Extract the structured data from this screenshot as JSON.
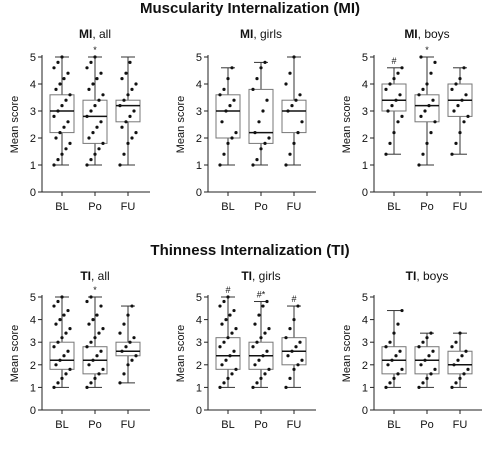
{
  "figure": {
    "title_mi": "Muscularity Internalization (MI)",
    "title_ti": "Thinness Internalization  (TI)"
  },
  "chart_data": [
    {
      "type": "box",
      "title_bold": "MI",
      "title_rest": ", all",
      "ylabel": "Mean score",
      "ylim": [
        0,
        5
      ],
      "yticks": [
        0,
        1,
        2,
        3,
        4,
        5
      ],
      "categories": [
        "BL",
        "Po",
        "FU"
      ],
      "boxes": [
        {
          "min": 1.0,
          "q1": 2.2,
          "median": 3.0,
          "q3": 3.6,
          "max": 5.0,
          "mark": "",
          "points": [
            1.0,
            1.2,
            1.4,
            1.6,
            1.8,
            2.0,
            2.2,
            2.4,
            2.6,
            2.8,
            3.0,
            3.2,
            3.4,
            3.6,
            3.8,
            4.0,
            4.2,
            4.4,
            4.6,
            4.8,
            5.0
          ]
        },
        {
          "min": 1.0,
          "q1": 1.8,
          "median": 2.8,
          "q3": 3.4,
          "max": 5.0,
          "mark": "*",
          "points": [
            1.0,
            1.2,
            1.4,
            1.6,
            1.8,
            2.0,
            2.2,
            2.4,
            2.6,
            2.8,
            3.0,
            3.2,
            3.4,
            3.6,
            3.8,
            4.0,
            4.2,
            4.4,
            4.6,
            4.8,
            5.0
          ]
        },
        {
          "min": 1.0,
          "q1": 2.6,
          "median": 3.2,
          "q3": 3.4,
          "max": 5.0,
          "mark": "",
          "points": [
            1.0,
            1.4,
            1.8,
            2.0,
            2.2,
            2.4,
            2.6,
            2.8,
            3.0,
            3.2,
            3.4,
            3.6,
            3.8,
            4.0,
            4.2,
            4.4,
            4.8
          ]
        }
      ]
    },
    {
      "type": "box",
      "title_bold": "MI",
      "title_rest": ", girls",
      "ylabel": "Mean score",
      "ylim": [
        0,
        5
      ],
      "yticks": [
        0,
        1,
        2,
        3,
        4,
        5
      ],
      "categories": [
        "BL",
        "Po",
        "FU"
      ],
      "boxes": [
        {
          "min": 1.0,
          "q1": 2.0,
          "median": 3.0,
          "q3": 3.6,
          "max": 4.6,
          "mark": "",
          "points": [
            1.0,
            1.4,
            1.8,
            2.0,
            2.2,
            2.6,
            3.0,
            3.2,
            3.4,
            3.6,
            3.8,
            4.2,
            4.6
          ]
        },
        {
          "min": 1.0,
          "q1": 1.8,
          "median": 2.2,
          "q3": 3.8,
          "max": 4.8,
          "mark": "",
          "points": [
            1.0,
            1.2,
            1.6,
            1.8,
            2.0,
            2.2,
            2.6,
            3.0,
            3.4,
            3.8,
            4.2,
            4.6,
            4.8
          ]
        },
        {
          "min": 1.0,
          "q1": 2.2,
          "median": 3.0,
          "q3": 3.4,
          "max": 5.0,
          "mark": "",
          "points": [
            1.0,
            1.4,
            1.8,
            2.2,
            2.6,
            3.0,
            3.2,
            3.4,
            3.6,
            4.0,
            4.4,
            5.0
          ]
        }
      ]
    },
    {
      "type": "box",
      "title_bold": "MI",
      "title_rest": ", boys",
      "ylabel": "Mean score",
      "ylim": [
        0,
        5
      ],
      "yticks": [
        0,
        1,
        2,
        3,
        4,
        5
      ],
      "categories": [
        "BL",
        "Po",
        "FU"
      ],
      "boxes": [
        {
          "min": 1.4,
          "q1": 3.0,
          "median": 3.4,
          "q3": 4.0,
          "max": 4.6,
          "mark": "#",
          "points": [
            1.4,
            1.8,
            2.2,
            2.6,
            2.8,
            3.0,
            3.2,
            3.4,
            3.6,
            3.8,
            4.0,
            4.2,
            4.4,
            4.6
          ]
        },
        {
          "min": 1.0,
          "q1": 2.6,
          "median": 3.2,
          "q3": 3.6,
          "max": 5.0,
          "mark": "*",
          "points": [
            1.0,
            1.4,
            1.8,
            2.2,
            2.6,
            2.8,
            3.0,
            3.2,
            3.4,
            3.6,
            3.8,
            4.0,
            4.4,
            4.8,
            5.0
          ]
        },
        {
          "min": 1.4,
          "q1": 2.8,
          "median": 3.4,
          "q3": 4.0,
          "max": 4.6,
          "mark": "",
          "points": [
            1.4,
            1.8,
            2.2,
            2.6,
            2.8,
            3.0,
            3.2,
            3.4,
            3.6,
            3.8,
            4.0,
            4.2,
            4.6
          ]
        }
      ]
    },
    {
      "type": "box",
      "title_bold": "TI",
      "title_rest": ", all",
      "ylabel": "Mean score",
      "ylim": [
        0,
        5
      ],
      "yticks": [
        0,
        1,
        2,
        3,
        4,
        5
      ],
      "categories": [
        "BL",
        "Po",
        "FU"
      ],
      "boxes": [
        {
          "min": 1.0,
          "q1": 1.8,
          "median": 2.2,
          "q3": 3.0,
          "max": 5.0,
          "mark": "",
          "points": [
            1.0,
            1.2,
            1.4,
            1.6,
            1.8,
            2.0,
            2.2,
            2.4,
            2.6,
            2.8,
            3.0,
            3.2,
            3.4,
            3.6,
            3.8,
            4.0,
            4.2,
            4.4,
            4.6,
            4.8,
            5.0
          ]
        },
        {
          "min": 1.0,
          "q1": 1.6,
          "median": 2.2,
          "q3": 2.8,
          "max": 5.0,
          "mark": "*",
          "points": [
            1.0,
            1.2,
            1.4,
            1.6,
            1.8,
            2.0,
            2.2,
            2.4,
            2.6,
            2.8,
            3.0,
            3.2,
            3.4,
            3.6,
            3.8,
            4.0,
            4.2,
            4.6,
            4.8,
            5.0
          ]
        },
        {
          "min": 1.2,
          "q1": 2.4,
          "median": 2.6,
          "q3": 3.0,
          "max": 4.6,
          "mark": "",
          "points": [
            1.2,
            1.6,
            2.0,
            2.2,
            2.4,
            2.6,
            2.8,
            3.0,
            3.2,
            3.4,
            3.8,
            4.2,
            4.6
          ]
        }
      ]
    },
    {
      "type": "box",
      "title_bold": "TI",
      "title_rest": ", girls",
      "ylabel": "Mean score",
      "ylim": [
        0,
        5
      ],
      "yticks": [
        0,
        1,
        2,
        3,
        4,
        5
      ],
      "categories": [
        "BL",
        "Po",
        "FU"
      ],
      "boxes": [
        {
          "min": 1.0,
          "q1": 1.8,
          "median": 2.4,
          "q3": 3.2,
          "max": 5.0,
          "mark": "#",
          "points": [
            1.0,
            1.2,
            1.4,
            1.6,
            1.8,
            2.0,
            2.2,
            2.4,
            2.6,
            2.8,
            3.0,
            3.2,
            3.4,
            3.6,
            3.8,
            4.0,
            4.2,
            4.4,
            4.6,
            4.8,
            5.0
          ]
        },
        {
          "min": 1.0,
          "q1": 1.8,
          "median": 2.4,
          "q3": 3.0,
          "max": 4.8,
          "mark": "#*",
          "points": [
            1.0,
            1.2,
            1.4,
            1.6,
            1.8,
            2.0,
            2.2,
            2.4,
            2.6,
            2.8,
            3.0,
            3.2,
            3.4,
            3.6,
            3.8,
            4.2,
            4.6,
            4.8
          ]
        },
        {
          "min": 1.0,
          "q1": 2.0,
          "median": 2.6,
          "q3": 3.2,
          "max": 4.6,
          "mark": "#",
          "points": [
            1.0,
            1.4,
            1.8,
            2.0,
            2.2,
            2.4,
            2.6,
            2.8,
            3.0,
            3.2,
            3.6,
            4.0,
            4.6
          ]
        }
      ]
    },
    {
      "type": "box",
      "title_bold": "TI",
      "title_rest": ", boys",
      "ylabel": "Mean score",
      "ylim": [
        0,
        5
      ],
      "yticks": [
        0,
        1,
        2,
        3,
        4,
        5
      ],
      "categories": [
        "BL",
        "Po",
        "FU"
      ],
      "boxes": [
        {
          "min": 1.0,
          "q1": 1.6,
          "median": 2.2,
          "q3": 2.8,
          "max": 4.4,
          "mark": "",
          "points": [
            1.0,
            1.2,
            1.4,
            1.6,
            1.8,
            2.0,
            2.2,
            2.4,
            2.6,
            2.8,
            3.0,
            3.4,
            3.8,
            4.4
          ]
        },
        {
          "min": 1.0,
          "q1": 1.6,
          "median": 2.2,
          "q3": 2.8,
          "max": 3.4,
          "mark": "",
          "points": [
            1.0,
            1.2,
            1.4,
            1.6,
            1.8,
            2.0,
            2.2,
            2.4,
            2.6,
            2.8,
            3.0,
            3.2,
            3.4
          ]
        },
        {
          "min": 1.0,
          "q1": 1.6,
          "median": 2.0,
          "q3": 2.6,
          "max": 3.4,
          "mark": "",
          "points": [
            1.0,
            1.2,
            1.4,
            1.6,
            1.8,
            2.0,
            2.2,
            2.4,
            2.6,
            2.8,
            3.0,
            3.4
          ]
        }
      ]
    }
  ]
}
